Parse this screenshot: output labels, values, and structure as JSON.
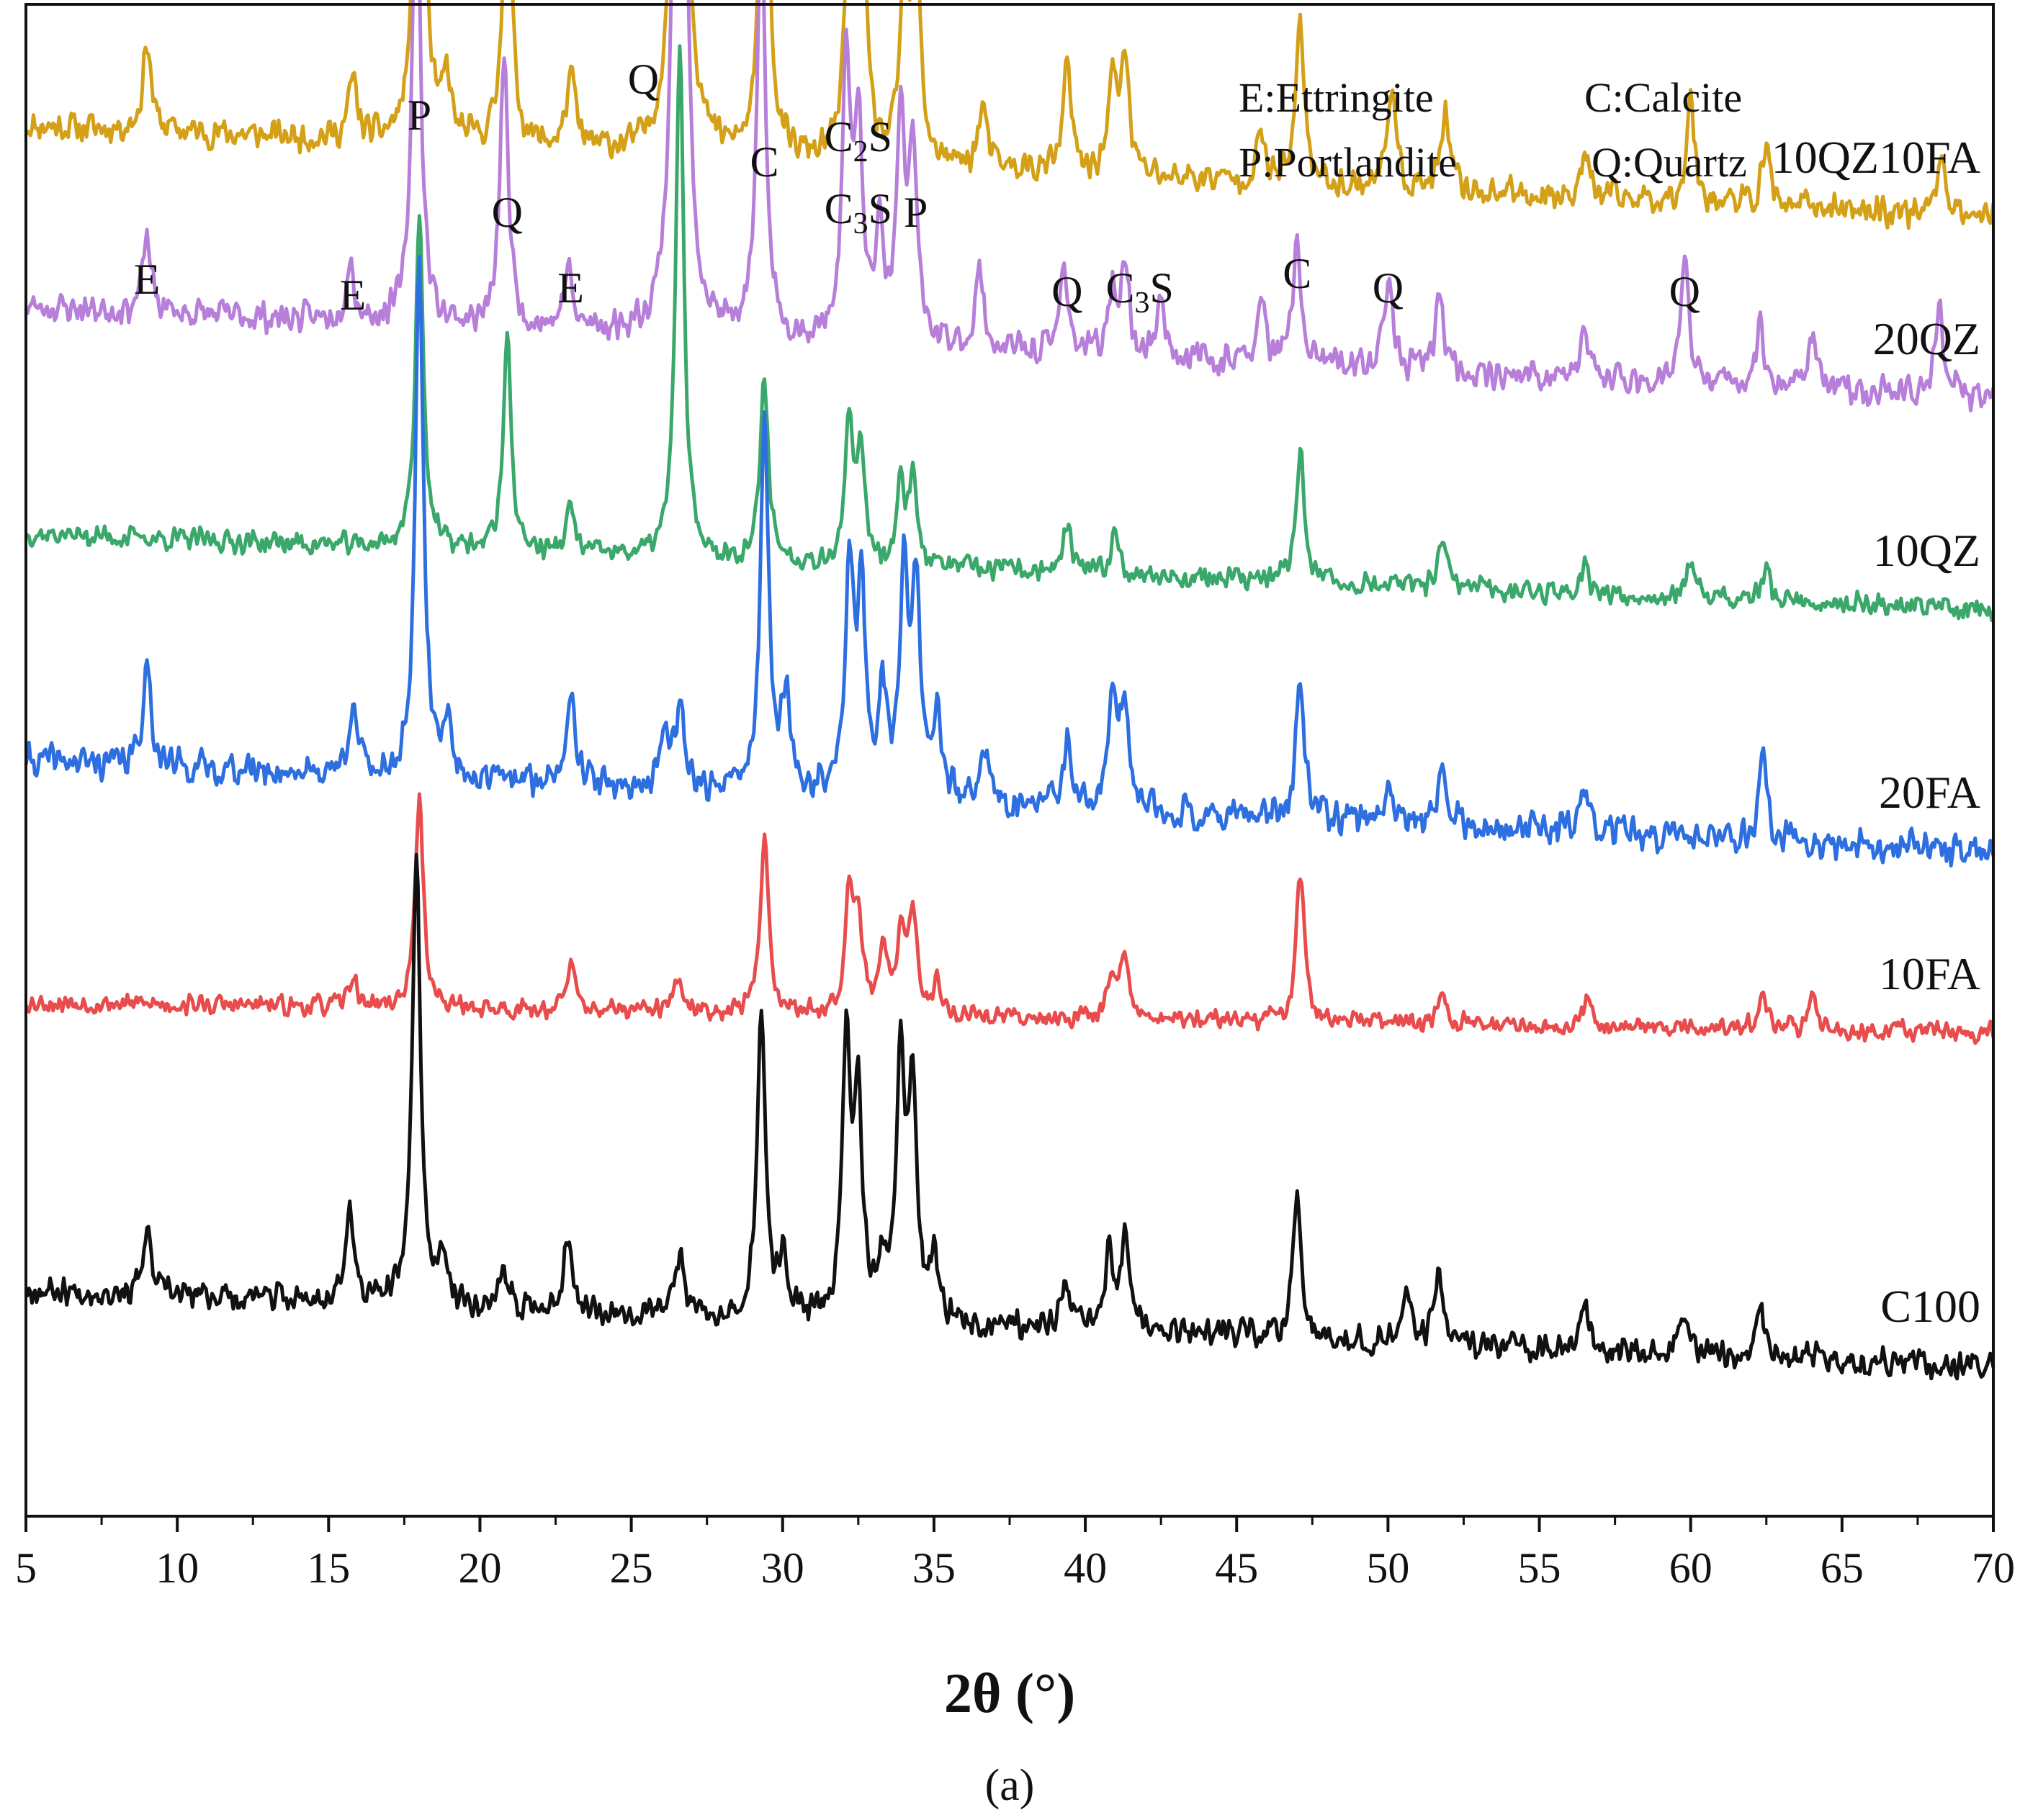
{
  "chart_data": {
    "type": "line",
    "title": "",
    "xlabel": "2θ (°)",
    "ylabel": "",
    "xlim": [
      5,
      70
    ],
    "x_ticks": [
      5,
      10,
      15,
      20,
      25,
      30,
      35,
      40,
      45,
      50,
      55,
      60,
      65,
      70
    ],
    "panel_label": "(a)",
    "legend": [
      {
        "code": "E",
        "text": "E:Ettringite"
      },
      {
        "code": "C",
        "text": "C:Calcite"
      },
      {
        "code": "P",
        "text": "P:Portlandite"
      },
      {
        "code": "Q",
        "text": "Q:Quartz"
      }
    ],
    "peak_labels": [
      {
        "x": 9.0,
        "text": "E"
      },
      {
        "x": 15.8,
        "text": "E"
      },
      {
        "x": 18.0,
        "text": "P"
      },
      {
        "x": 20.9,
        "text": "Q"
      },
      {
        "x": 23.0,
        "text": "E"
      },
      {
        "x": 25.4,
        "text": "Q"
      },
      {
        "x": 29.4,
        "text": "C"
      },
      {
        "x": 32.5,
        "text": "C2S"
      },
      {
        "x": 32.5,
        "text": "C3S"
      },
      {
        "x": 34.4,
        "text": "P"
      },
      {
        "x": 39.4,
        "text": "Q"
      },
      {
        "x": 41.8,
        "text": "C3S"
      },
      {
        "x": 47.0,
        "text": "C"
      },
      {
        "x": 50.0,
        "text": "Q"
      },
      {
        "x": 59.8,
        "text": "Q"
      }
    ],
    "series": [
      {
        "name": "10QZ10FA",
        "color": "#d4a017",
        "baseline": [
          0.92,
          0.86
        ],
        "noise": 0.012,
        "seed": 11,
        "peaks": [
          [
            9.0,
            0.06
          ],
          [
            15.8,
            0.04
          ],
          [
            18.0,
            0.4
          ],
          [
            18.9,
            0.04
          ],
          [
            20.9,
            0.21
          ],
          [
            23.0,
            0.05
          ],
          [
            26.6,
            0.85
          ],
          [
            29.4,
            0.3
          ],
          [
            32.2,
            0.16
          ],
          [
            32.6,
            0.19
          ],
          [
            34.0,
            0.11
          ],
          [
            34.4,
            0.16
          ],
          [
            36.6,
            0.04
          ],
          [
            39.4,
            0.07
          ],
          [
            40.9,
            0.06
          ],
          [
            41.3,
            0.08
          ],
          [
            45.8,
            0.03
          ],
          [
            47.1,
            0.11
          ],
          [
            50.1,
            0.07
          ],
          [
            51.9,
            0.05
          ],
          [
            56.5,
            0.03
          ],
          [
            60.0,
            0.07
          ],
          [
            62.5,
            0.04
          ],
          [
            68.3,
            0.04
          ]
        ]
      },
      {
        "name": "20QZ",
        "color": "#b77fd9",
        "baseline": [
          0.8,
          0.74
        ],
        "noise": 0.012,
        "seed": 23,
        "peaks": [
          [
            9.0,
            0.05
          ],
          [
            15.7,
            0.04
          ],
          [
            17.9,
            0.32
          ],
          [
            20.8,
            0.18
          ],
          [
            22.9,
            0.04
          ],
          [
            26.6,
            0.95
          ],
          [
            29.3,
            0.28
          ],
          [
            32.1,
            0.18
          ],
          [
            32.5,
            0.14
          ],
          [
            33.2,
            0.07
          ],
          [
            33.9,
            0.14
          ],
          [
            34.3,
            0.13
          ],
          [
            36.5,
            0.05
          ],
          [
            39.3,
            0.06
          ],
          [
            40.9,
            0.04
          ],
          [
            41.3,
            0.06
          ],
          [
            42.5,
            0.04
          ],
          [
            45.8,
            0.04
          ],
          [
            47.0,
            0.08
          ],
          [
            50.0,
            0.06
          ],
          [
            51.7,
            0.05
          ],
          [
            56.5,
            0.03
          ],
          [
            59.8,
            0.08
          ],
          [
            62.3,
            0.04
          ],
          [
            64.0,
            0.04
          ],
          [
            68.2,
            0.06
          ]
        ]
      },
      {
        "name": "10QZ",
        "color": "#3aa86b",
        "baseline": [
          0.65,
          0.6
        ],
        "noise": 0.009,
        "seed": 37,
        "peaks": [
          [
            18.0,
            0.22
          ],
          [
            20.9,
            0.14
          ],
          [
            23.0,
            0.03
          ],
          [
            26.6,
            0.34
          ],
          [
            29.4,
            0.12
          ],
          [
            32.2,
            0.09
          ],
          [
            32.6,
            0.07
          ],
          [
            33.9,
            0.05
          ],
          [
            34.3,
            0.06
          ],
          [
            39.4,
            0.03
          ],
          [
            41.0,
            0.03
          ],
          [
            47.1,
            0.09
          ],
          [
            51.8,
            0.03
          ],
          [
            56.5,
            0.02
          ],
          [
            60.0,
            0.02
          ],
          [
            62.5,
            0.02
          ]
        ]
      },
      {
        "name": "20FA",
        "color": "#2d6fe0",
        "baseline": [
          0.5,
          0.44
        ],
        "noise": 0.013,
        "seed": 41,
        "peaks": [
          [
            9.0,
            0.07
          ],
          [
            15.8,
            0.05
          ],
          [
            18.0,
            0.34
          ],
          [
            18.9,
            0.04
          ],
          [
            23.0,
            0.07
          ],
          [
            26.1,
            0.04
          ],
          [
            26.6,
            0.06
          ],
          [
            29.4,
            0.25
          ],
          [
            30.1,
            0.06
          ],
          [
            32.2,
            0.15
          ],
          [
            32.6,
            0.13
          ],
          [
            33.3,
            0.07
          ],
          [
            34.0,
            0.14
          ],
          [
            34.4,
            0.14
          ],
          [
            35.1,
            0.06
          ],
          [
            36.7,
            0.03
          ],
          [
            39.4,
            0.04
          ],
          [
            40.9,
            0.07
          ],
          [
            41.3,
            0.07
          ],
          [
            47.1,
            0.09
          ],
          [
            50.0,
            0.03
          ],
          [
            51.8,
            0.05
          ],
          [
            56.5,
            0.03
          ],
          [
            62.4,
            0.05
          ]
        ]
      },
      {
        "name": "10FA",
        "color": "#e84c4c",
        "baseline": [
          0.34,
          0.32
        ],
        "noise": 0.008,
        "seed": 53,
        "peaks": [
          [
            15.8,
            0.02
          ],
          [
            18.0,
            0.14
          ],
          [
            23.0,
            0.03
          ],
          [
            26.5,
            0.02
          ],
          [
            29.4,
            0.12
          ],
          [
            32.2,
            0.08
          ],
          [
            32.5,
            0.06
          ],
          [
            33.3,
            0.04
          ],
          [
            33.9,
            0.05
          ],
          [
            34.3,
            0.07
          ],
          [
            35.1,
            0.02
          ],
          [
            40.9,
            0.03
          ],
          [
            41.3,
            0.04
          ],
          [
            47.1,
            0.1
          ],
          [
            51.8,
            0.02
          ],
          [
            56.6,
            0.02
          ],
          [
            62.4,
            0.02
          ],
          [
            64.0,
            0.02
          ]
        ]
      },
      {
        "name": "C100",
        "color": "#111111",
        "baseline": [
          0.15,
          0.1
        ],
        "noise": 0.011,
        "seed": 67,
        "peaks": [
          [
            9.0,
            0.04
          ],
          [
            15.7,
            0.06
          ],
          [
            17.9,
            0.3
          ],
          [
            18.8,
            0.03
          ],
          [
            20.8,
            0.02
          ],
          [
            22.9,
            0.05
          ],
          [
            26.6,
            0.04
          ],
          [
            29.3,
            0.2
          ],
          [
            30.0,
            0.04
          ],
          [
            32.1,
            0.18
          ],
          [
            32.5,
            0.14
          ],
          [
            33.3,
            0.03
          ],
          [
            33.9,
            0.17
          ],
          [
            34.3,
            0.15
          ],
          [
            35.0,
            0.04
          ],
          [
            39.3,
            0.03
          ],
          [
            40.8,
            0.05
          ],
          [
            41.3,
            0.06
          ],
          [
            47.0,
            0.1
          ],
          [
            50.6,
            0.04
          ],
          [
            51.7,
            0.05
          ],
          [
            56.5,
            0.03
          ],
          [
            59.8,
            0.03
          ],
          [
            62.3,
            0.03
          ]
        ]
      }
    ]
  }
}
